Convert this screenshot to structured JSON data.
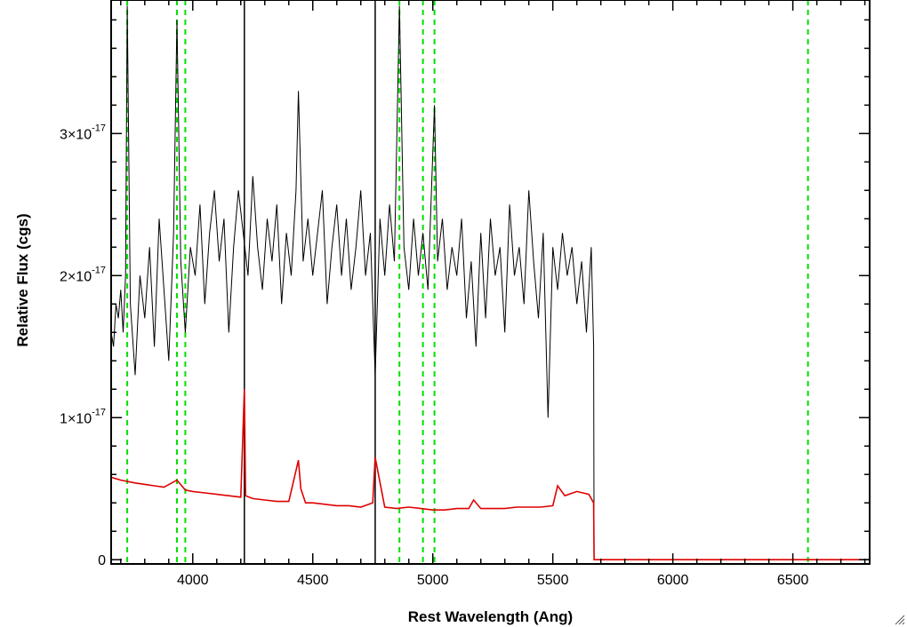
{
  "chart_data": {
    "type": "line",
    "xlabel": "Rest Wavelength (Ang)",
    "ylabel": "Relative Flux (cgs)",
    "xlim": [
      3660,
      6820
    ],
    "ylim": [
      -3e-19,
      3.94e-17
    ],
    "x_ticks": [
      4000,
      4500,
      5000,
      5500,
      6000,
      6500
    ],
    "x_tick_labels": [
      "4000",
      "4500",
      "5000",
      "5500",
      "6000",
      "6500"
    ],
    "x_minor_step": 100,
    "y_ticks": [
      0,
      1e-17,
      2e-17,
      3e-17
    ],
    "y_tick_labels": [
      {
        "mantissa": "0",
        "exponent": ""
      },
      {
        "mantissa": "1×10",
        "exponent": "-17"
      },
      {
        "mantissa": "2×10",
        "exponent": "-17"
      },
      {
        "mantissa": "3×10",
        "exponent": "-17"
      }
    ],
    "y_minor_step": 2e-18,
    "grid": false,
    "reference_lines": {
      "color": "#00e000",
      "style": "dashed",
      "x": [
        3727,
        3934,
        3969,
        4861,
        4959,
        5007,
        6563
      ]
    },
    "marker_lines": {
      "color": "#000000",
      "style": "solid",
      "x": [
        4215,
        4760
      ]
    },
    "series": [
      {
        "color": "#000000",
        "x": [
          3660,
          3670,
          3680,
          3690,
          3700,
          3710,
          3720,
          3727,
          3740,
          3760,
          3780,
          3800,
          3820,
          3840,
          3860,
          3880,
          3900,
          3920,
          3934,
          3950,
          3969,
          3990,
          4010,
          4030,
          4050,
          4070,
          4090,
          4110,
          4130,
          4150,
          4170,
          4190,
          4210,
          4230,
          4250,
          4270,
          4290,
          4310,
          4330,
          4350,
          4370,
          4390,
          4410,
          4430,
          4440,
          4460,
          4480,
          4500,
          4520,
          4540,
          4560,
          4580,
          4600,
          4620,
          4640,
          4660,
          4680,
          4700,
          4720,
          4740,
          4760,
          4780,
          4800,
          4820,
          4840,
          4861,
          4880,
          4900,
          4920,
          4940,
          4959,
          4980,
          5007,
          5020,
          5040,
          5060,
          5080,
          5100,
          5120,
          5140,
          5160,
          5180,
          5200,
          5220,
          5240,
          5260,
          5280,
          5300,
          5320,
          5340,
          5360,
          5380,
          5400,
          5420,
          5440,
          5460,
          5480,
          5500,
          5520,
          5540,
          5560,
          5580,
          5600,
          5620,
          5640,
          5660,
          5670,
          5672,
          5700,
          5800,
          5900,
          6000,
          6100,
          6200,
          6300,
          6400,
          6500,
          6600,
          6700,
          6820
        ],
        "values": [
          1.6e-17,
          1.5e-17,
          1.8e-17,
          1.7e-17,
          1.9e-17,
          1.6e-17,
          2e-17,
          3.9e-17,
          1.8e-17,
          1.3e-17,
          2e-17,
          1.7e-17,
          2.2e-17,
          1.5e-17,
          2.4e-17,
          1.9e-17,
          1.4e-17,
          2.3e-17,
          3.8e-17,
          2.1e-17,
          1.6e-17,
          2.2e-17,
          2e-17,
          2.5e-17,
          1.8e-17,
          2.3e-17,
          2.6e-17,
          2.1e-17,
          2.4e-17,
          1.6e-17,
          2.2e-17,
          2.6e-17,
          2.3e-17,
          2e-17,
          2.7e-17,
          2.2e-17,
          1.9e-17,
          2.4e-17,
          2.1e-17,
          2.5e-17,
          1.8e-17,
          2.3e-17,
          2e-17,
          2.6e-17,
          3.3e-17,
          2.1e-17,
          2.4e-17,
          2e-17,
          2.3e-17,
          2.6e-17,
          1.8e-17,
          2.2e-17,
          2.5e-17,
          2e-17,
          2.4e-17,
          1.9e-17,
          2.2e-17,
          2.6e-17,
          2e-17,
          2.3e-17,
          1.3e-17,
          2.4e-17,
          2e-17,
          2.5e-17,
          2.1e-17,
          3.9e-17,
          2.2e-17,
          1.9e-17,
          2.4e-17,
          2e-17,
          2.3e-17,
          1.9e-17,
          3.2e-17,
          2.1e-17,
          2.4e-17,
          1.9e-17,
          2.2e-17,
          2e-17,
          2.4e-17,
          1.7e-17,
          2.1e-17,
          1.5e-17,
          2.3e-17,
          1.7e-17,
          2.4e-17,
          2e-17,
          2.2e-17,
          1.6e-17,
          2.5e-17,
          2e-17,
          2.2e-17,
          1.8e-17,
          2.6e-17,
          2.1e-17,
          1.7e-17,
          2.3e-17,
          1e-17,
          2.2e-17,
          1.9e-17,
          2.3e-17,
          2e-17,
          2.2e-17,
          1.8e-17,
          2.1e-17,
          1.6e-17,
          2.2e-17,
          1.5e-17,
          0,
          0,
          0,
          0,
          0,
          0,
          0,
          0,
          0,
          0,
          0,
          0,
          0
        ]
      },
      {
        "color": "#e00000",
        "x": [
          3660,
          3700,
          3760,
          3800,
          3840,
          3880,
          3934,
          3969,
          4000,
          4050,
          4100,
          4150,
          4200,
          4215,
          4220,
          4250,
          4300,
          4350,
          4400,
          4440,
          4450,
          4470,
          4500,
          4550,
          4600,
          4650,
          4700,
          4750,
          4760,
          4800,
          4850,
          4900,
          4950,
          5000,
          5050,
          5100,
          5150,
          5170,
          5200,
          5250,
          5300,
          5350,
          5400,
          5450,
          5500,
          5520,
          5550,
          5600,
          5650,
          5670,
          5672,
          5700,
          5800,
          5900,
          6000,
          6100,
          6200,
          6300,
          6400,
          6500,
          6600,
          6700,
          6820
        ],
        "values": [
          5.8e-18,
          5.6e-18,
          5.4e-18,
          5.3e-18,
          5.2e-18,
          5.1e-18,
          5.6e-18,
          4.9e-18,
          4.8e-18,
          4.7e-18,
          4.6e-18,
          4.5e-18,
          4.4e-18,
          1.2e-17,
          4.5e-18,
          4.3e-18,
          4.2e-18,
          4.1e-18,
          4.1e-18,
          7e-18,
          5e-18,
          4e-18,
          4e-18,
          3.9e-18,
          3.8e-18,
          3.8e-18,
          3.7e-18,
          4e-18,
          7.2e-18,
          3.7e-18,
          3.6e-18,
          3.7e-18,
          3.6e-18,
          3.5e-18,
          3.5e-18,
          3.6e-18,
          3.6e-18,
          4.2e-18,
          3.6e-18,
          3.6e-18,
          3.6e-18,
          3.7e-18,
          3.7e-18,
          3.7e-18,
          3.8e-18,
          5.2e-18,
          4.5e-18,
          4.8e-18,
          4.6e-18,
          4e-18,
          0,
          0,
          0,
          0,
          0,
          0,
          0,
          0,
          0,
          0,
          0,
          0,
          0
        ]
      }
    ]
  }
}
